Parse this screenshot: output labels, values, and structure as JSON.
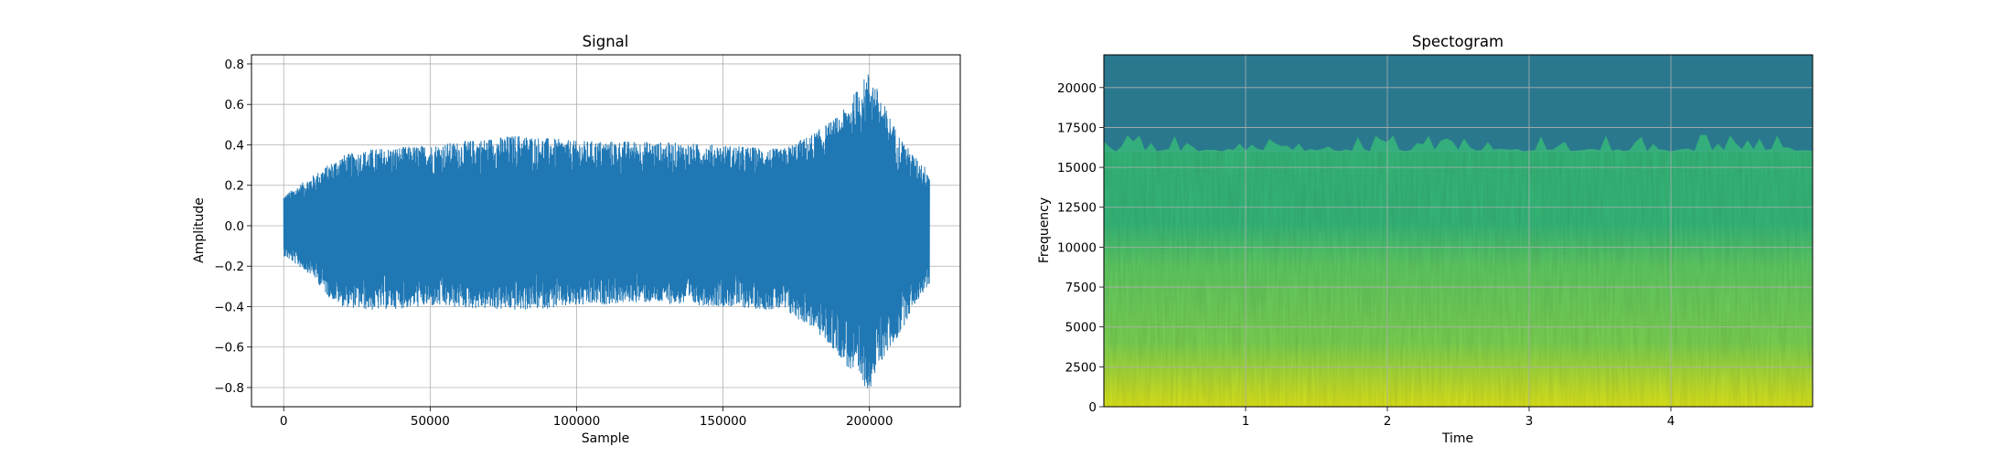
{
  "chart_data": [
    {
      "type": "line",
      "title": "Signal",
      "xlabel": "Sample",
      "ylabel": "Amplitude",
      "xlim": [
        -11000,
        231000
      ],
      "ylim": [
        -0.895,
        0.845
      ],
      "grid": true,
      "color": "#1f77b4",
      "xticks": [
        0,
        50000,
        100000,
        150000,
        200000
      ],
      "xtick_labels": [
        "0",
        "50000",
        "100000",
        "150000",
        "200000"
      ],
      "yticks": [
        -0.8,
        -0.6,
        -0.4,
        -0.2,
        0.0,
        0.2,
        0.4,
        0.6,
        0.8
      ],
      "ytick_labels": [
        "−0.8",
        "−0.6",
        "−0.4",
        "−0.2",
        "0.0",
        "0.2",
        "0.4",
        "0.6",
        "0.8"
      ],
      "n_samples": 220500,
      "envelope": {
        "x": [
          0,
          5000,
          10000,
          15000,
          20000,
          30000,
          50000,
          80000,
          100000,
          120000,
          150000,
          170000,
          180000,
          190000,
          196000,
          200000,
          205000,
          210000,
          215000,
          220000
        ],
        "upper": [
          0.15,
          0.2,
          0.25,
          0.3,
          0.35,
          0.38,
          0.4,
          0.45,
          0.42,
          0.42,
          0.4,
          0.38,
          0.45,
          0.55,
          0.68,
          0.77,
          0.6,
          0.45,
          0.35,
          0.28
        ],
        "lower": [
          -0.15,
          -0.2,
          -0.25,
          -0.35,
          -0.4,
          -0.42,
          -0.4,
          -0.42,
          -0.4,
          -0.38,
          -0.4,
          -0.42,
          -0.5,
          -0.65,
          -0.78,
          -0.81,
          -0.65,
          -0.55,
          -0.4,
          -0.3
        ]
      }
    },
    {
      "type": "heatmap",
      "title": "Spectogram",
      "xlabel": "Time",
      "ylabel": "Frequency",
      "xlim": [
        0,
        5.0
      ],
      "ylim": [
        0,
        22050
      ],
      "grid": true,
      "colormap": "viridis",
      "xticks": [
        1,
        2,
        3,
        4
      ],
      "xtick_labels": [
        "1",
        "2",
        "3",
        "4"
      ],
      "yticks": [
        0,
        2500,
        5000,
        7500,
        10000,
        12500,
        15000,
        17500,
        20000
      ],
      "ytick_labels": [
        "0",
        "2500",
        "5000",
        "7500",
        "10000",
        "12500",
        "15000",
        "17500",
        "20000"
      ],
      "cutoff_frequency": 16000,
      "colors": {
        "low_band": "#dce319",
        "mid_band": "#7ad151",
        "upper_band": "#5ec962",
        "edge_band": "#35b779",
        "above_cutoff": "#2a788e",
        "top": "#26828e"
      }
    }
  ]
}
